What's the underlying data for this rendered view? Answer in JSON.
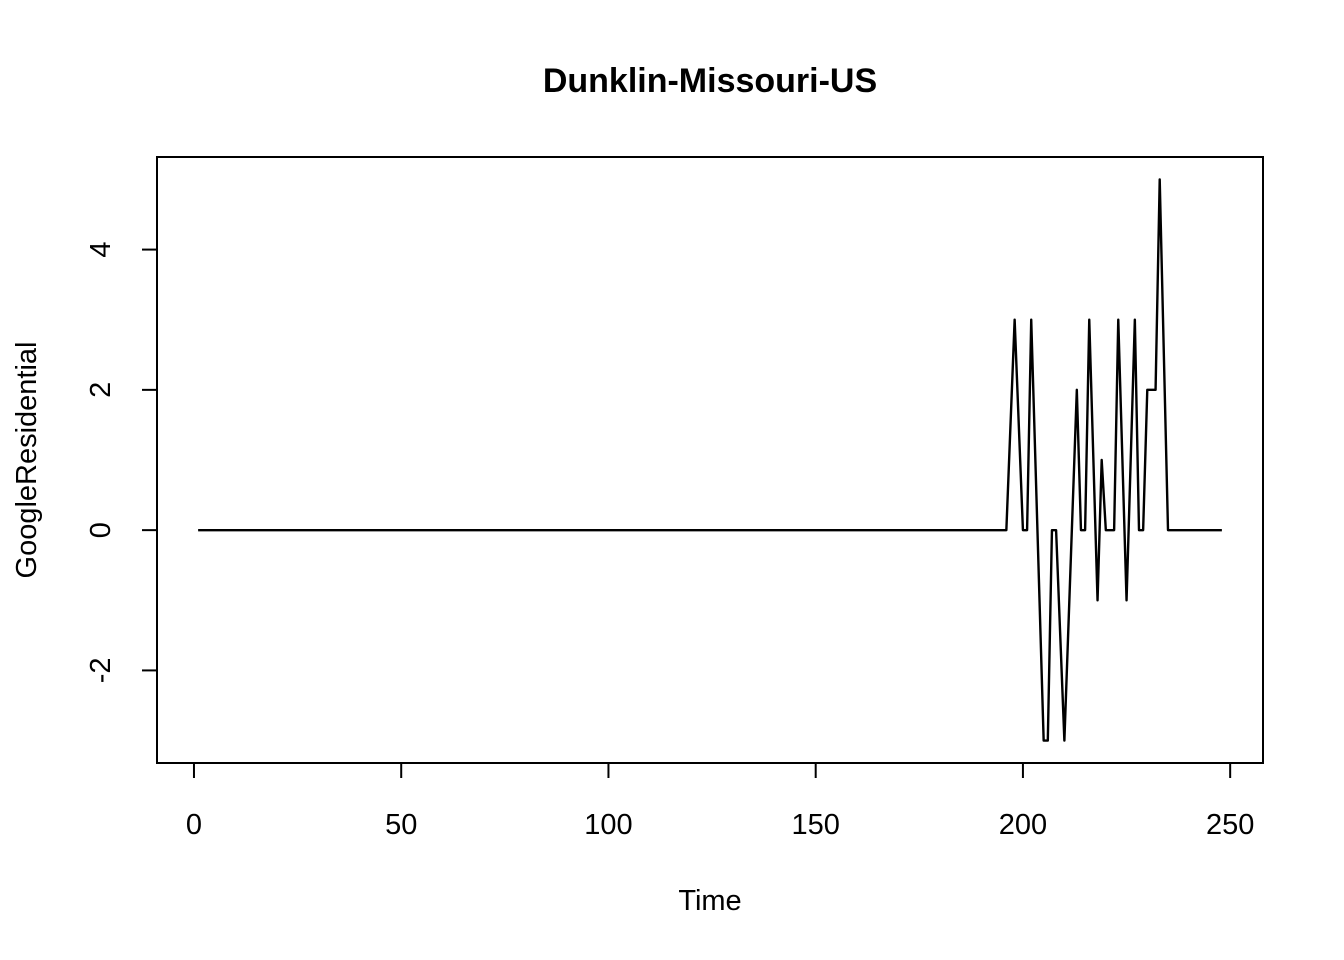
{
  "chart_data": {
    "type": "line",
    "title": "Dunklin-Missouri-US",
    "xlabel": "Time",
    "ylabel": "GoogleResidential",
    "xlim": [
      -8.92,
      257.92
    ],
    "ylim": [
      -3.32,
      5.32
    ],
    "xticks": [
      0,
      50,
      100,
      150,
      200,
      250
    ],
    "yticks": [
      -2,
      0,
      2,
      4
    ],
    "series": [
      {
        "x": [
          1,
          196,
          198,
          200,
          201,
          202,
          205,
          206,
          207,
          208,
          210,
          213,
          214,
          215,
          216,
          218,
          219,
          220,
          222,
          223,
          225,
          227,
          228,
          229,
          230,
          232,
          233,
          235,
          248
        ],
        "values": [
          0,
          0,
          3,
          0,
          0,
          3,
          -3,
          -3,
          0,
          0,
          -3,
          2,
          0,
          0,
          3,
          -1,
          1,
          0,
          0,
          3,
          -1,
          3,
          0,
          0,
          2,
          2,
          5,
          0,
          0
        ]
      }
    ]
  }
}
